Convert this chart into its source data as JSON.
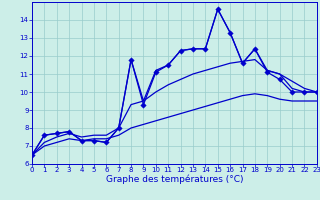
{
  "title": "Graphe des températures (°C)",
  "bg_color": "#cceee8",
  "line_color": "#0000cc",
  "x_hours": [
    0,
    1,
    2,
    3,
    4,
    5,
    6,
    7,
    8,
    9,
    10,
    11,
    12,
    13,
    14,
    15,
    16,
    17,
    18,
    19,
    20,
    21,
    22,
    23
  ],
  "temp_main": [
    6.5,
    7.6,
    7.7,
    7.8,
    7.3,
    7.3,
    7.2,
    8.0,
    11.8,
    9.3,
    11.1,
    11.5,
    12.3,
    12.4,
    12.4,
    14.6,
    13.3,
    11.6,
    12.4,
    11.1,
    10.7,
    10.0,
    10.0,
    10.0
  ],
  "temp_upper": [
    6.5,
    7.6,
    7.7,
    7.8,
    7.3,
    7.3,
    7.2,
    8.0,
    11.8,
    9.5,
    11.2,
    11.5,
    12.3,
    12.4,
    12.4,
    14.6,
    13.3,
    11.6,
    12.4,
    11.2,
    11.0,
    10.2,
    10.0,
    10.0
  ],
  "temp_mid": [
    6.5,
    7.2,
    7.5,
    7.7,
    7.5,
    7.6,
    7.6,
    8.0,
    9.3,
    9.5,
    10.0,
    10.4,
    10.7,
    11.0,
    11.2,
    11.4,
    11.6,
    11.7,
    11.8,
    11.2,
    11.0,
    10.6,
    10.2,
    10.0
  ],
  "temp_lower": [
    6.5,
    7.0,
    7.2,
    7.4,
    7.3,
    7.4,
    7.4,
    7.6,
    8.0,
    8.2,
    8.4,
    8.6,
    8.8,
    9.0,
    9.2,
    9.4,
    9.6,
    9.8,
    9.9,
    9.8,
    9.6,
    9.5,
    9.5,
    9.5
  ],
  "ylim": [
    6,
    15
  ],
  "yticks": [
    6,
    7,
    8,
    9,
    10,
    11,
    12,
    13,
    14
  ],
  "xlim": [
    0,
    23
  ],
  "xticks": [
    0,
    1,
    2,
    3,
    4,
    5,
    6,
    7,
    8,
    9,
    10,
    11,
    12,
    13,
    14,
    15,
    16,
    17,
    18,
    19,
    20,
    21,
    22,
    23
  ],
  "grid_color": "#99cccc",
  "markersize": 2.8,
  "linewidth": 0.9,
  "xlabel_fontsize": 6.5,
  "tick_fontsize": 5.0
}
